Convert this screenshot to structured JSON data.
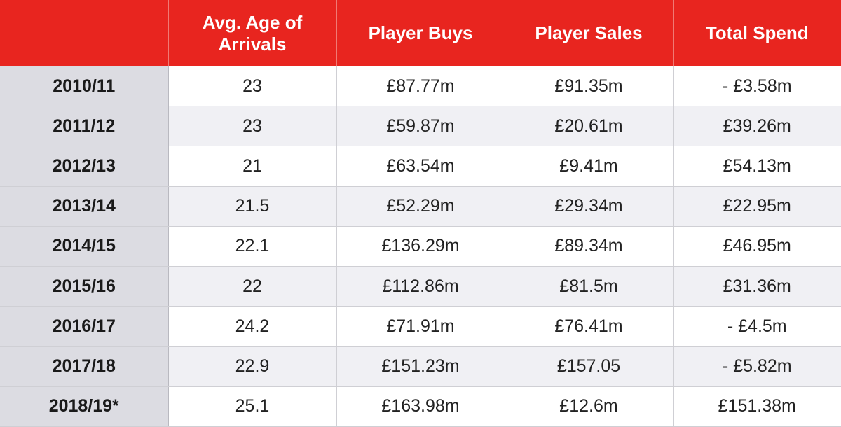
{
  "chart_data": {
    "type": "table",
    "columns": [
      "",
      "Avg. Age of Arrivals",
      "Player Buys",
      "Player Sales",
      "Total Spend"
    ],
    "rows": [
      [
        "2010/11",
        "23",
        "£87.77m",
        "£91.35m",
        "- £3.58m"
      ],
      [
        "2011/12",
        "23",
        "£59.87m",
        "£20.61m",
        "£39.26m"
      ],
      [
        "2012/13",
        "21",
        "£63.54m",
        "£9.41m",
        "£54.13m"
      ],
      [
        "2013/14",
        "21.5",
        "£52.29m",
        "£29.34m",
        "£22.95m"
      ],
      [
        "2014/15",
        "22.1",
        "£136.29m",
        "£89.34m",
        "£46.95m"
      ],
      [
        "2015/16",
        "22",
        "£112.86m",
        "£81.5m",
        "£31.36m"
      ],
      [
        "2016/17",
        "24.2",
        "£71.91m",
        "£76.41m",
        "- £4.5m"
      ],
      [
        "2017/18",
        "22.9",
        "£151.23m",
        "£157.05",
        "- £5.82m"
      ],
      [
        "2018/19*",
        "25.1",
        "£163.98m",
        "£12.6m",
        "£151.38m"
      ]
    ]
  },
  "colors": {
    "header_bg": "#e8251f",
    "header_text": "#ffffff",
    "season_bg": "#dcdce2",
    "alt_row_bg": "#f0f0f4"
  }
}
